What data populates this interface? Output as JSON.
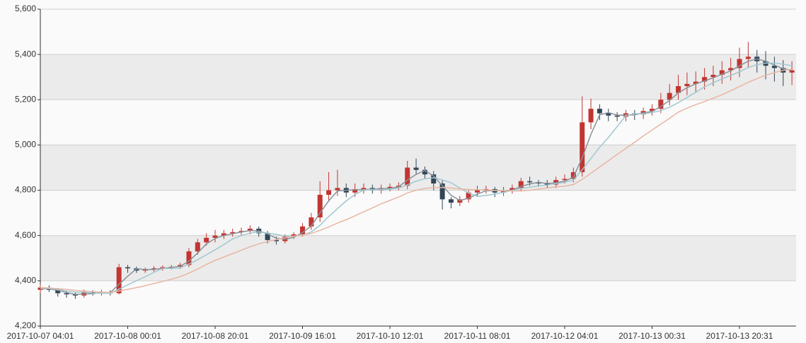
{
  "chart_data": {
    "type": "candlestick",
    "categories": [
      "2017-10-07 04:01",
      null,
      null,
      null,
      null,
      null,
      null,
      null,
      null,
      null,
      "2017-10-08 00:01",
      null,
      null,
      null,
      null,
      null,
      null,
      null,
      null,
      null,
      "2017-10-08 20:01",
      null,
      null,
      null,
      null,
      null,
      null,
      null,
      null,
      null,
      "2017-10-09 16:01",
      null,
      null,
      null,
      null,
      null,
      null,
      null,
      null,
      null,
      "2017-10-10 12:01",
      null,
      null,
      null,
      null,
      null,
      null,
      null,
      null,
      null,
      "2017-10-11 08:01",
      null,
      null,
      null,
      null,
      null,
      null,
      null,
      null,
      null,
      "2017-10-12 04:01",
      null,
      null,
      null,
      null,
      null,
      null,
      null,
      null,
      null,
      "2017-10-13 00:31",
      null,
      null,
      null,
      null,
      null,
      null,
      null,
      null,
      null,
      "2017-10-13 20:31",
      null,
      null,
      null,
      null,
      null,
      null
    ],
    "open": [
      4360,
      4370,
      4360,
      4345,
      4340,
      4335,
      4350,
      4345,
      4350,
      4345,
      4460,
      4455,
      4445,
      4450,
      4455,
      4460,
      4462,
      4470,
      4530,
      4570,
      4590,
      4600,
      4610,
      4615,
      4620,
      4630,
      4610,
      4580,
      4575,
      4595,
      4605,
      4640,
      4680,
      4780,
      4800,
      4810,
      4790,
      4805,
      4810,
      4800,
      4810,
      4815,
      4820,
      4900,
      4890,
      4870,
      4830,
      4760,
      4745,
      4760,
      4790,
      4800,
      4805,
      4790,
      4800,
      4810,
      4840,
      4835,
      4830,
      4825,
      4845,
      4850,
      4880,
      5100,
      5160,
      5140,
      5130,
      5125,
      5140,
      5135,
      5150,
      5160,
      5200,
      5230,
      5260,
      5270,
      5280,
      5300,
      5310,
      5330,
      5340,
      5380,
      5390,
      5370,
      5350,
      5340,
      5320
    ],
    "close": [
      4370,
      4360,
      4345,
      4340,
      4335,
      4350,
      4345,
      4350,
      4345,
      4460,
      4455,
      4445,
      4450,
      4455,
      4460,
      4462,
      4470,
      4530,
      4570,
      4590,
      4600,
      4610,
      4615,
      4620,
      4630,
      4610,
      4580,
      4575,
      4595,
      4605,
      4640,
      4680,
      4780,
      4800,
      4810,
      4790,
      4805,
      4810,
      4800,
      4810,
      4815,
      4820,
      4900,
      4890,
      4870,
      4830,
      4760,
      4745,
      4760,
      4790,
      4800,
      4805,
      4790,
      4800,
      4810,
      4840,
      4835,
      4830,
      4825,
      4845,
      4850,
      4880,
      5100,
      5160,
      5140,
      5130,
      5125,
      5140,
      5135,
      5150,
      5160,
      5200,
      5230,
      5260,
      5270,
      5280,
      5300,
      5310,
      5330,
      5340,
      5380,
      5390,
      5370,
      5350,
      5340,
      5320,
      5330
    ],
    "low": [
      4345,
      4350,
      4330,
      4325,
      4320,
      4325,
      4335,
      4335,
      4335,
      4340,
      4435,
      4435,
      4435,
      4440,
      4445,
      4450,
      4452,
      4460,
      4515,
      4555,
      4570,
      4585,
      4595,
      4600,
      4605,
      4595,
      4565,
      4560,
      4565,
      4585,
      4595,
      4625,
      4660,
      4750,
      4775,
      4770,
      4770,
      4785,
      4785,
      4785,
      4795,
      4800,
      4805,
      4870,
      4850,
      4800,
      4715,
      4720,
      4730,
      4745,
      4775,
      4785,
      4770,
      4775,
      4785,
      4795,
      4820,
      4815,
      4810,
      4810,
      4830,
      4835,
      4860,
      5070,
      5110,
      5105,
      5105,
      5105,
      5110,
      5115,
      5130,
      5140,
      5175,
      5200,
      5220,
      5230,
      5245,
      5260,
      5270,
      5285,
      5300,
      5340,
      5320,
      5290,
      5280,
      5260,
      5265
    ],
    "high": [
      4385,
      4380,
      4368,
      4353,
      4350,
      4362,
      4358,
      4360,
      4358,
      4475,
      4470,
      4463,
      4458,
      4465,
      4468,
      4470,
      4480,
      4545,
      4585,
      4610,
      4625,
      4625,
      4630,
      4635,
      4645,
      4640,
      4620,
      4595,
      4605,
      4615,
      4655,
      4700,
      4840,
      4880,
      4890,
      4830,
      4830,
      4830,
      4825,
      4825,
      4830,
      4835,
      4930,
      4940,
      4905,
      4885,
      4845,
      4770,
      4775,
      4805,
      4820,
      4820,
      4815,
      4815,
      4825,
      4855,
      4860,
      4845,
      4845,
      4860,
      4870,
      4900,
      5215,
      5205,
      5180,
      5160,
      5145,
      5155,
      5155,
      5165,
      5180,
      5230,
      5270,
      5310,
      5320,
      5325,
      5340,
      5350,
      5370,
      5385,
      5430,
      5455,
      5420,
      5415,
      5390,
      5375,
      5370
    ],
    "up_color": "#c23531",
    "down_color": "#314656",
    "series": [
      {
        "color": "#8a9099",
        "values": [
          4365,
          4365,
          4358,
          4348,
          4340,
          4342,
          4343,
          4348,
          4347,
          4385,
          4420,
          4453,
          4450,
          4450,
          4455,
          4459,
          4464,
          4487,
          4523,
          4563,
          4587,
          4600,
          4608,
          4615,
          4622,
          4620,
          4607,
          4588,
          4583,
          4592,
          4613,
          4642,
          4700,
          4753,
          4797,
          4800,
          4802,
          4802,
          4805,
          4807,
          4808,
          4815,
          4845,
          4870,
          4887,
          4863,
          4820,
          4778,
          4755,
          4765,
          4783,
          4798,
          4798,
          4798,
          4800,
          4817,
          4828,
          4835,
          4830,
          4833,
          4840,
          4858,
          4943,
          5047,
          5133,
          5143,
          5132,
          5132,
          5133,
          5142,
          5148,
          5170,
          5197,
          5230,
          5253,
          5270,
          5283,
          5297,
          5313,
          5327,
          5350,
          5370,
          5380,
          5370,
          5353,
          5337,
          5330
        ]
      },
      {
        "color": "#9fc8cf",
        "values": [
          4368,
          4366,
          4362,
          4355,
          4350,
          4350,
          4346,
          4345,
          4345,
          4363,
          4382,
          4400,
          4418,
          4437,
          4455,
          4455,
          4457,
          4474,
          4493,
          4515,
          4537,
          4560,
          4585,
          4600,
          4611,
          4615,
          4611,
          4605,
          4598,
          4597,
          4601,
          4616,
          4645,
          4684,
          4719,
          4753,
          4781,
          4801,
          4803,
          4803,
          4805,
          4809,
          4824,
          4840,
          4851,
          4855,
          4846,
          4833,
          4810,
          4788,
          4773,
          4777,
          4783,
          4791,
          4800,
          4808,
          4813,
          4820,
          4823,
          4830,
          4835,
          4845,
          4890,
          4940,
          4990,
          5033,
          5081,
          5130,
          5138,
          5138,
          5143,
          5152,
          5167,
          5187,
          5210,
          5233,
          5257,
          5275,
          5292,
          5307,
          5323,
          5342,
          5355,
          5362,
          5362,
          5357,
          5350
        ]
      },
      {
        "color": "#e8b6a2",
        "values": [
          4370,
          4368,
          4365,
          4362,
          4358,
          4355,
          4352,
          4350,
          4348,
          4355,
          4362,
          4370,
          4378,
          4388,
          4397,
          4407,
          4418,
          4434,
          4452,
          4472,
          4490,
          4505,
          4520,
          4535,
          4550,
          4563,
          4573,
          4582,
          4590,
          4597,
          4603,
          4609,
          4623,
          4638,
          4655,
          4670,
          4687,
          4705,
          4722,
          4740,
          4755,
          4770,
          4788,
          4800,
          4808,
          4812,
          4812,
          4810,
          4806,
          4803,
          4802,
          4801,
          4800,
          4798,
          4797,
          4797,
          4800,
          4805,
          4810,
          4815,
          4818,
          4825,
          4848,
          4875,
          4903,
          4930,
          4958,
          4985,
          5012,
          5040,
          5066,
          5092,
          5118,
          5145,
          5163,
          5178,
          5192,
          5207,
          5222,
          5240,
          5258,
          5277,
          5293,
          5308,
          5320,
          5330,
          5335
        ]
      }
    ],
    "ylim": [
      4200,
      5600
    ],
    "yticks": [
      {
        "value": 4200,
        "label": "4,200"
      },
      {
        "value": 4400,
        "label": "4,400"
      },
      {
        "value": 4600,
        "label": "4,600"
      },
      {
        "value": 4800,
        "label": "4,800"
      },
      {
        "value": 5000,
        "label": "5,000"
      },
      {
        "value": 5200,
        "label": "5,200"
      },
      {
        "value": 5400,
        "label": "5,400"
      },
      {
        "value": 5600,
        "label": "5,600"
      }
    ],
    "grid": true,
    "band_color": "#ebebeb"
  }
}
